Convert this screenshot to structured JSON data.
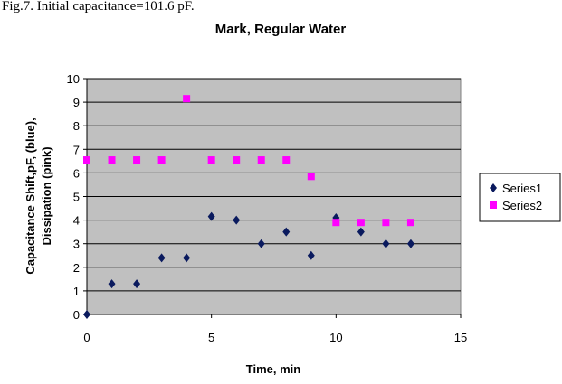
{
  "caption": "Fig.7. Initial capacitance=101.6 pF.",
  "chart_data": {
    "type": "scatter",
    "title": "Mark, Regular Water",
    "xlabel": "Time, min",
    "ylabel_lines": [
      "Capacitance Shift,pF, (blue),",
      "Dissipation (pink)"
    ],
    "xlim": [
      0,
      15
    ],
    "ylim": [
      0,
      10
    ],
    "xticks": [
      0,
      5,
      10,
      15
    ],
    "yticks": [
      0,
      1,
      2,
      3,
      4,
      5,
      6,
      7,
      8,
      9,
      10
    ],
    "grid": "horizontal",
    "plot_background": "#c0c0c0",
    "legend_position": "right",
    "series": [
      {
        "name": "Series1",
        "marker": "diamond",
        "color": "#0a1a5e",
        "x": [
          0,
          1,
          2,
          3,
          4,
          5,
          6,
          7,
          8,
          9,
          10,
          11,
          12,
          13
        ],
        "y": [
          0,
          1.3,
          1.3,
          2.4,
          2.4,
          4.15,
          4.0,
          3.0,
          3.5,
          2.5,
          4.1,
          3.5,
          3.0,
          3.0
        ]
      },
      {
        "name": "Series2",
        "marker": "square",
        "color": "#ff00ff",
        "x": [
          0,
          1,
          2,
          3,
          4,
          5,
          6,
          7,
          8,
          9,
          10,
          11,
          12,
          13
        ],
        "y": [
          6.55,
          6.55,
          6.55,
          6.55,
          9.15,
          6.55,
          6.55,
          6.55,
          6.55,
          5.85,
          3.9,
          3.9,
          3.9,
          3.9
        ]
      }
    ]
  }
}
